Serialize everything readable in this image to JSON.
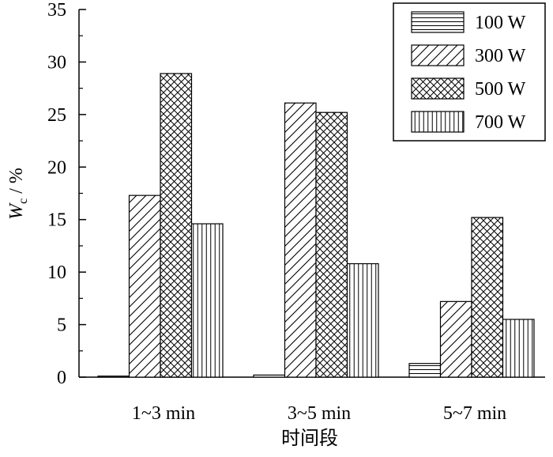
{
  "chart_data": {
    "type": "bar",
    "categories": [
      "1~3 min",
      "3~5 min",
      "5~7 min"
    ],
    "series": [
      {
        "name": "100 W",
        "values": [
          0.1,
          0.2,
          1.3
        ],
        "pattern": "horizontal-lines"
      },
      {
        "name": "300 W",
        "values": [
          17.3,
          26.1,
          7.2
        ],
        "pattern": "diagonal-lines"
      },
      {
        "name": "500 W",
        "values": [
          28.9,
          25.2,
          15.2
        ],
        "pattern": "crosshatch"
      },
      {
        "name": "700 W",
        "values": [
          14.6,
          10.8,
          5.5
        ],
        "pattern": "vertical-lines"
      }
    ],
    "xlabel": "时间段",
    "ylabel_main": "W",
    "ylabel_sub": "c",
    "ylabel_unit": " / %",
    "ylim": [
      0,
      35
    ],
    "yticks": [
      0,
      5,
      10,
      15,
      20,
      25,
      30,
      35
    ],
    "grid": false,
    "legend_position": "top-right"
  }
}
